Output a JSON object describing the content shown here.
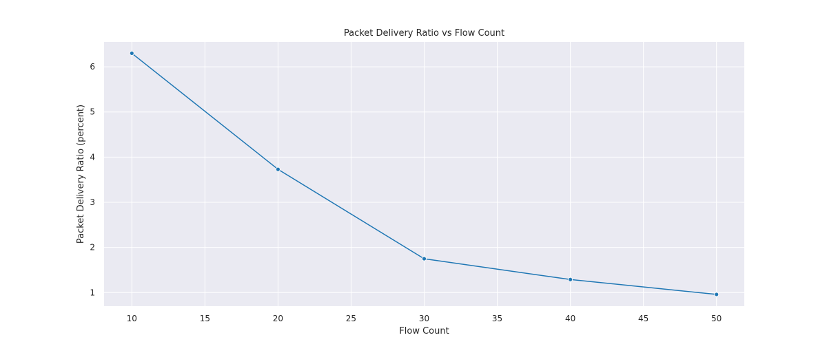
{
  "chart_data": {
    "type": "line",
    "title": "Packet Delivery Ratio vs Flow Count",
    "xlabel": "Flow Count",
    "ylabel": "Packet Delivery Ratio (percent)",
    "x": [
      10,
      20,
      30,
      40,
      50
    ],
    "series": [
      {
        "values": [
          6.3,
          3.73,
          1.75,
          1.29,
          0.96
        ]
      }
    ],
    "xlim": [
      8.1,
      51.9
    ],
    "ylim": [
      0.7,
      6.55
    ],
    "xticks": [
      10,
      15,
      20,
      25,
      30,
      35,
      40,
      45,
      50
    ],
    "yticks": [
      1,
      2,
      3,
      4,
      5,
      6
    ],
    "grid": true,
    "legend": "none",
    "colors": {
      "line": "#1f77b4",
      "plot_background": "#eaeaf2",
      "grid": "#ffffff",
      "text": "#262626"
    }
  }
}
